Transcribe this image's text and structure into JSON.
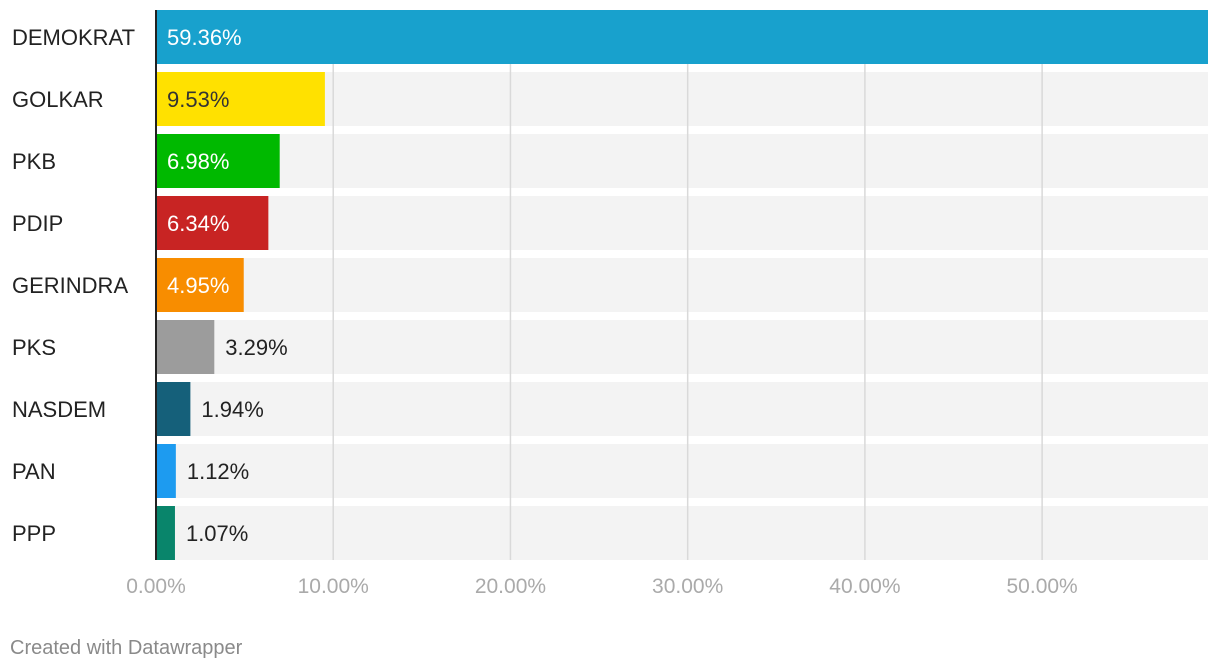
{
  "chart_data": {
    "type": "bar",
    "orientation": "horizontal",
    "categories": [
      "DEMOKRAT",
      "GOLKAR",
      "PKB",
      "PDIP",
      "GERINDRA",
      "PKS",
      "NASDEM",
      "PAN",
      "PPP"
    ],
    "values": [
      59.36,
      9.53,
      6.98,
      6.34,
      4.95,
      3.29,
      1.94,
      1.12,
      1.07
    ],
    "value_labels": [
      "59.36%",
      "9.53%",
      "6.98%",
      "6.34%",
      "4.95%",
      "3.29%",
      "1.94%",
      "1.12%",
      "1.07%"
    ],
    "colors": [
      "#18a1cd",
      "#ffe100",
      "#00b900",
      "#c82423",
      "#f88d00",
      "#9c9c9c",
      "#15607a",
      "#1d9bf0",
      "#09856b"
    ],
    "label_inside": [
      true,
      true,
      true,
      true,
      true,
      false,
      false,
      false,
      false
    ],
    "inside_label_colors": [
      "#ffffff",
      "#333333",
      "#ffffff",
      "#ffffff",
      "#ffffff",
      "#222222",
      "#222222",
      "#222222",
      "#222222"
    ],
    "xlim": [
      0,
      59.36
    ],
    "x_ticks": [
      0,
      10,
      20,
      30,
      40,
      50
    ],
    "x_tick_labels": [
      "0.00%",
      "10.00%",
      "20.00%",
      "30.00%",
      "40.00%",
      "50.00%"
    ],
    "grid": true,
    "track_color": "#f3f3f3",
    "grid_color": "#d9d9d9",
    "title": "",
    "xlabel": "",
    "ylabel": ""
  },
  "footer": {
    "credit": "Created with Datawrapper"
  }
}
